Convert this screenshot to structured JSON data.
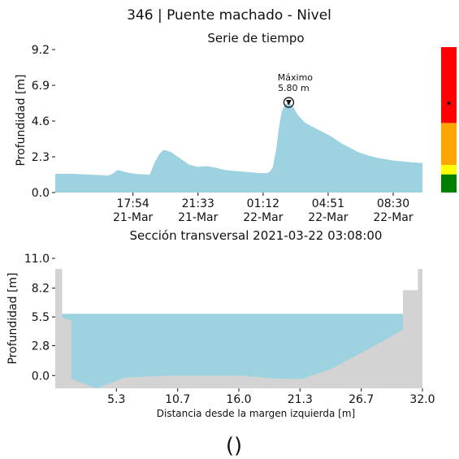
{
  "title": "346 | Puente machado  - Nivel",
  "footer": "()",
  "colors": {
    "fill": "#9dd2e1",
    "ground": "#d3d3d3",
    "alert_red": "#ff0000",
    "alert_orange": "#ffa500",
    "alert_yellow": "#ffff00",
    "alert_green": "#008000"
  },
  "chart_data": [
    {
      "type": "area",
      "title": "Serie de tiempo",
      "ylabel": "Profundidad [m]",
      "xlabel": "",
      "ylim": [
        0,
        9.2
      ],
      "yticks": [
        "0.0",
        "2.3",
        "4.6",
        "6.9",
        "9.2"
      ],
      "xticks": [
        {
          "line1": "17:54",
          "line2": "21-Mar"
        },
        {
          "line1": "21:33",
          "line2": "21-Mar"
        },
        {
          "line1": "01:12",
          "line2": "22-Mar"
        },
        {
          "line1": "04:51",
          "line2": "22-Mar"
        },
        {
          "line1": "08:30",
          "line2": "22-Mar"
        }
      ],
      "x_hours": [
        0,
        1,
        2,
        3,
        3.2,
        3.5,
        4.0,
        4.5,
        5.3,
        5.6,
        5.85,
        6.1,
        6.5,
        7.0,
        7.5,
        8.0,
        8.5,
        9.0,
        9.5,
        10.0,
        10.5,
        11.0,
        11.5,
        11.8,
        12.0,
        12.2,
        12.4,
        12.55,
        12.7,
        12.9,
        13.1,
        13.35,
        13.6,
        14.0,
        14.5,
        15.0,
        15.5,
        16.0,
        16.5,
        17.0,
        17.5,
        18.0,
        18.5,
        19.0,
        19.5,
        20.0,
        20.6
      ],
      "y_values": [
        1.2,
        1.2,
        1.15,
        1.1,
        1.2,
        1.45,
        1.3,
        1.2,
        1.15,
        2.0,
        2.5,
        2.75,
        2.6,
        2.2,
        1.8,
        1.65,
        1.7,
        1.6,
        1.45,
        1.4,
        1.35,
        1.3,
        1.25,
        1.25,
        1.3,
        1.6,
        2.8,
        4.2,
        5.2,
        5.7,
        5.8,
        5.5,
        5.0,
        4.5,
        4.2,
        3.9,
        3.6,
        3.2,
        2.9,
        2.6,
        2.4,
        2.25,
        2.15,
        2.05,
        2.0,
        1.95,
        1.9
      ],
      "x_range_hours": [
        0,
        20.6
      ],
      "xtick_hours": [
        4.36,
        8.01,
        11.66,
        15.31,
        18.96
      ],
      "max_annotation": {
        "label": "Máximo",
        "value_label": "5.80 m",
        "x_hour": 13.1,
        "y": 5.8
      },
      "alert_levels": [
        {
          "color": "green",
          "from": 0,
          "to": 1.15
        },
        {
          "color": "yellow",
          "from": 1.15,
          "to": 1.75
        },
        {
          "color": "orange",
          "from": 1.75,
          "to": 4.4
        },
        {
          "color": "red",
          "from": 4.4,
          "to": 9.2
        }
      ],
      "current_level": 5.8
    },
    {
      "type": "area",
      "title": "Sección transversal 2021-03-22 03:08:00",
      "xlabel": "Distancia desde la margen izquierda [m]",
      "ylabel": "Profundidad [m]",
      "xlim": [
        0,
        32.0
      ],
      "ylim": [
        -1.2,
        11.0
      ],
      "yticks": [
        "11.0",
        "8.2",
        "5.5",
        "2.8",
        "0.0"
      ],
      "ytick_values": [
        11.0,
        8.2,
        5.5,
        2.8,
        0.0
      ],
      "xticks": [
        "5.3",
        "10.7",
        "16.0",
        "21.3",
        "26.7",
        "32.0"
      ],
      "xtick_values": [
        5.33,
        10.67,
        16.0,
        21.33,
        26.67,
        32.0
      ],
      "water_level": 5.8,
      "bed_x": [
        0,
        0,
        0.6,
        0.6,
        1.4,
        1.4,
        3.6,
        6.0,
        10.0,
        16.0,
        19.5,
        21.5,
        24.0,
        28.0,
        30.3,
        30.3,
        31.6,
        31.6,
        32.0
      ],
      "bed_y": [
        -1.2,
        10.0,
        10.0,
        5.4,
        5.2,
        -0.3,
        -1.2,
        -0.2,
        0.0,
        0.0,
        -0.3,
        -0.3,
        0.6,
        2.9,
        4.3,
        8.0,
        8.0,
        10.0,
        10.0
      ]
    }
  ]
}
